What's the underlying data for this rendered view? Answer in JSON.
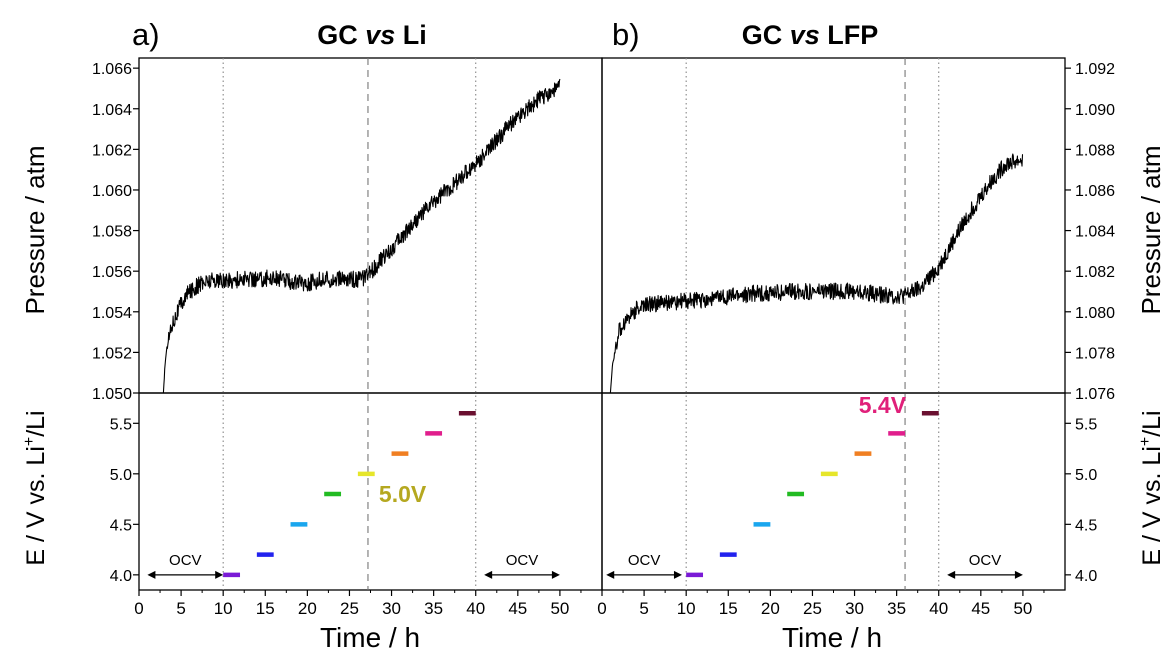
{
  "figure": {
    "panels": [
      "a)",
      "b)"
    ],
    "titles": [
      {
        "pre": "GC ",
        "em": "vs",
        "post": " Li"
      },
      {
        "pre": "GC ",
        "em": "vs",
        "post": " LFP"
      }
    ],
    "xlabel": "Time / h",
    "pressure_label": "Pressure / atm",
    "potential_label": {
      "pre": "E / V vs. Li",
      "sup": "+",
      "post": "/Li"
    }
  },
  "chart_data": [
    {
      "type": "line",
      "panel": "a",
      "title": "GC vs Li",
      "xlabel": "Time / h",
      "ylabel": "Pressure / atm",
      "xlim": [
        0,
        55
      ],
      "ylim": [
        1.05,
        1.0665
      ],
      "xticks": [
        0,
        5,
        10,
        15,
        20,
        25,
        30,
        35,
        40,
        45,
        50
      ],
      "yticks": [
        "1.050",
        "1.052",
        "1.054",
        "1.056",
        "1.058",
        "1.060",
        "1.062",
        "1.064",
        "1.066"
      ],
      "series": [
        {
          "x": [
            2.9,
            3.1,
            3.5,
            4,
            5,
            6,
            7,
            8,
            9,
            10,
            12,
            14,
            16,
            18,
            20,
            22,
            24,
            26,
            27,
            28,
            30,
            32,
            34,
            36,
            38,
            40,
            42,
            44,
            46,
            48,
            50
          ],
          "y": [
            1.05,
            1.0515,
            1.0527,
            1.0535,
            1.0544,
            1.055,
            1.0553,
            1.0555,
            1.0556,
            1.0555,
            1.0556,
            1.0556,
            1.0557,
            1.0555,
            1.0554,
            1.0556,
            1.0556,
            1.0556,
            1.0557,
            1.0562,
            1.0571,
            1.0581,
            1.059,
            1.0598,
            1.0605,
            1.0613,
            1.0622,
            1.0632,
            1.064,
            1.0646,
            1.0651
          ]
        }
      ],
      "vlines": [
        {
          "x": 10,
          "style": "dotted"
        },
        {
          "x": 27.2,
          "style": "dashed"
        },
        {
          "x": 40,
          "style": "dotted"
        }
      ]
    },
    {
      "type": "line",
      "panel": "a",
      "xlabel": "Time / h",
      "ylabel": "E / V vs. Li+/Li",
      "xlim": [
        0,
        55
      ],
      "ylim": [
        3.85,
        5.8
      ],
      "yticks": [
        "4.0",
        "4.5",
        "5.0",
        "5.5"
      ],
      "steps": [
        {
          "x0": 10,
          "x1": 12,
          "v": 4.0,
          "color": "#7a1ad6"
        },
        {
          "x0": 14,
          "x1": 16,
          "v": 4.2,
          "color": "#2222ee"
        },
        {
          "x0": 18,
          "x1": 20,
          "v": 4.5,
          "color": "#1aa6ee"
        },
        {
          "x0": 22,
          "x1": 24,
          "v": 4.8,
          "color": "#22bb22"
        },
        {
          "x0": 26,
          "x1": 28,
          "v": 5.0,
          "color": "#e6e62a"
        },
        {
          "x0": 30,
          "x1": 32,
          "v": 5.2,
          "color": "#f07f22"
        },
        {
          "x0": 34,
          "x1": 36,
          "v": 5.4,
          "color": "#e01e8c"
        },
        {
          "x0": 38,
          "x1": 40,
          "v": 5.6,
          "color": "#6a1030"
        }
      ],
      "annotations": [
        {
          "text": "OCV",
          "x0": 1,
          "x1": 10,
          "y": 4.0
        },
        {
          "text": "OCV",
          "x0": 41,
          "x1": 50,
          "y": 4.0
        },
        {
          "text": "5.0V",
          "x": 28.5,
          "y": 4.72,
          "color": "#b5a820"
        }
      ]
    },
    {
      "type": "line",
      "panel": "b",
      "title": "GC vs LFP",
      "xlabel": "Time / h",
      "ylabel": "Pressure / atm",
      "xlim": [
        0,
        55
      ],
      "ylim": [
        1.076,
        1.0925
      ],
      "xticks": [
        0,
        5,
        10,
        15,
        20,
        25,
        30,
        35,
        40,
        45,
        50
      ],
      "yticks": [
        "1.076",
        "1.078",
        "1.080",
        "1.082",
        "1.084",
        "1.086",
        "1.088",
        "1.090",
        "1.092"
      ],
      "series": [
        {
          "x": [
            1.0,
            1.2,
            1.6,
            2,
            3,
            4,
            5,
            6,
            7,
            8,
            10,
            12,
            14,
            16,
            18,
            20,
            22,
            24,
            26,
            28,
            30,
            32,
            34,
            36,
            38,
            40,
            42,
            44,
            46,
            48,
            50
          ],
          "y": [
            1.076,
            1.0772,
            1.0782,
            1.079,
            1.0797,
            1.0801,
            1.0803,
            1.0804,
            1.0804,
            1.0805,
            1.0805,
            1.0806,
            1.0807,
            1.0808,
            1.0809,
            1.0809,
            1.081,
            1.081,
            1.081,
            1.081,
            1.081,
            1.0809,
            1.0808,
            1.0808,
            1.0812,
            1.0822,
            1.0837,
            1.0851,
            1.0863,
            1.0873,
            1.0875
          ]
        }
      ],
      "vlines": [
        {
          "x": 10,
          "style": "dotted"
        },
        {
          "x": 36,
          "style": "dashed"
        },
        {
          "x": 40,
          "style": "dotted"
        }
      ]
    },
    {
      "type": "line",
      "panel": "b",
      "xlabel": "Time / h",
      "ylabel": "E / V vs. Li+/Li",
      "xlim": [
        0,
        55
      ],
      "ylim": [
        3.85,
        5.8
      ],
      "yticks": [
        "4.0",
        "4.5",
        "5.0",
        "5.5"
      ],
      "steps": [
        {
          "x0": 10,
          "x1": 12,
          "v": 4.0,
          "color": "#7a1ad6"
        },
        {
          "x0": 14,
          "x1": 16,
          "v": 4.2,
          "color": "#2222ee"
        },
        {
          "x0": 18,
          "x1": 20,
          "v": 4.5,
          "color": "#1aa6ee"
        },
        {
          "x0": 22,
          "x1": 24,
          "v": 4.8,
          "color": "#22bb22"
        },
        {
          "x0": 26,
          "x1": 28,
          "v": 5.0,
          "color": "#e6e62a"
        },
        {
          "x0": 30,
          "x1": 32,
          "v": 5.2,
          "color": "#f07f22"
        },
        {
          "x0": 34,
          "x1": 36,
          "v": 5.4,
          "color": "#e01e8c"
        },
        {
          "x0": 38,
          "x1": 40,
          "v": 5.6,
          "color": "#6a1030"
        }
      ],
      "annotations": [
        {
          "text": "OCV",
          "x0": 0.5,
          "x1": 9.5,
          "y": 4.0
        },
        {
          "text": "OCV",
          "x0": 41,
          "x1": 50,
          "y": 4.0
        },
        {
          "text": "5.4V",
          "x": 30.5,
          "y": 5.6,
          "color": "#e0207a"
        }
      ]
    }
  ]
}
